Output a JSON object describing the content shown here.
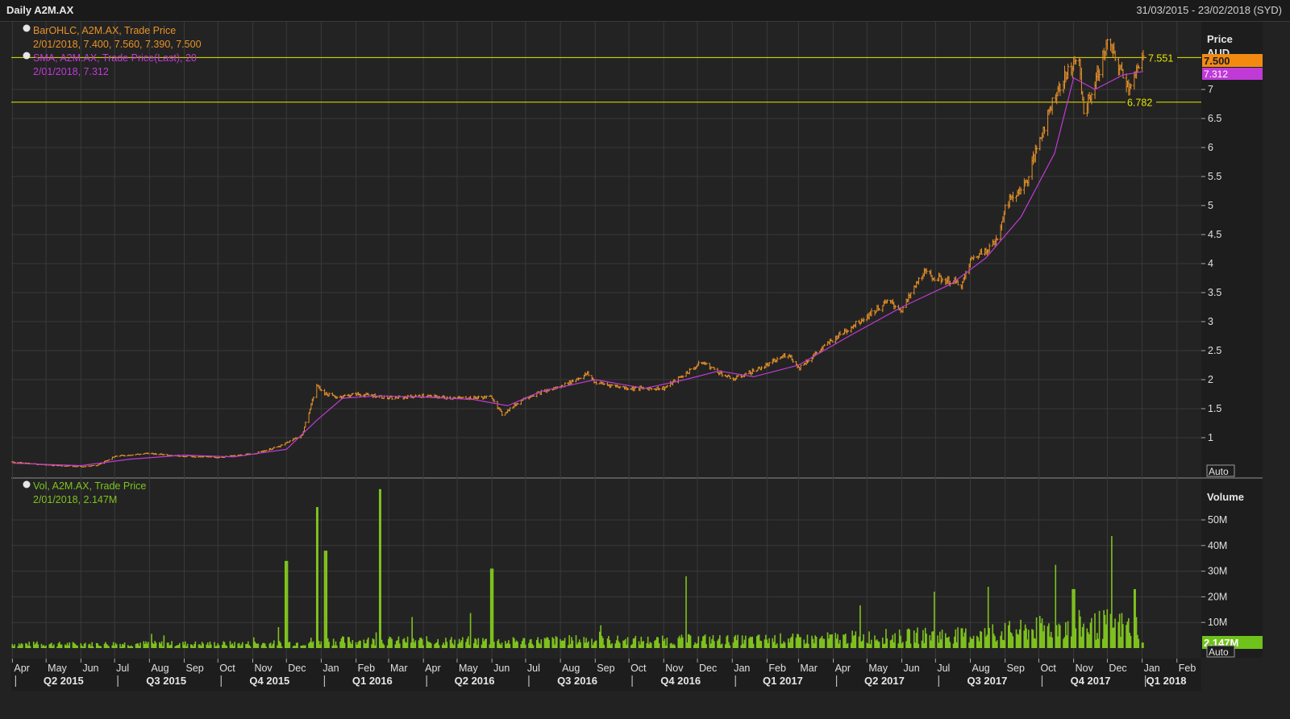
{
  "window": {
    "title": "Daily A2M.AX",
    "date_range": "31/03/2015 - 23/02/2018 (SYD)"
  },
  "colors": {
    "price": "#e8922a",
    "sma": "#c03ad8",
    "volume": "#7fc21f",
    "hline": "#e6e600",
    "grid": "#3a3a3a",
    "bg": "#222222"
  },
  "legend": {
    "ohlc_title": "BarOHLC, A2M.AX, Trade Price",
    "ohlc_values": "2/01/2018, 7.400, 7.560, 7.390, 7.500",
    "sma_title": "SMA, A2M.AX, Trade Price(Last), 20",
    "sma_values": "2/01/2018, 7.312",
    "vol_title": "Vol, A2M.AX, Trade Price",
    "vol_values": "2/01/2018, 2.147M"
  },
  "price_axis": {
    "title": "Price",
    "unit": "AUD",
    "auto_label": "Auto",
    "last_price": "7.500",
    "last_sma": "7.312"
  },
  "volume_axis": {
    "title": "Volume",
    "auto_label": "Auto",
    "last_volume": "2.147M"
  },
  "hlines": [
    {
      "value": 7.551,
      "label": "7.551"
    },
    {
      "value": 6.782,
      "label": "6.782"
    }
  ],
  "chart_data": [
    {
      "type": "line",
      "title": "",
      "series": [
        {
          "name": "BarOHLC, A2M.AX, Trade Price",
          "x": [
            "2015-04-01",
            "2015-05-01",
            "2015-06-01",
            "2015-06-15",
            "2015-07-01",
            "2015-08-01",
            "2015-09-01",
            "2015-10-01",
            "2015-11-01",
            "2015-11-25",
            "2015-12-15",
            "2015-12-28",
            "2016-01-05",
            "2016-01-15",
            "2016-02-01",
            "2016-02-20",
            "2016-03-01",
            "2016-04-01",
            "2016-05-01",
            "2016-06-01",
            "2016-06-10",
            "2016-07-01",
            "2016-08-01",
            "2016-08-25",
            "2016-09-01",
            "2016-10-01",
            "2016-11-01",
            "2016-11-20",
            "2016-12-05",
            "2017-01-01",
            "2017-02-01",
            "2017-02-20",
            "2017-03-01",
            "2017-04-01",
            "2017-05-01",
            "2017-05-20",
            "2017-06-01",
            "2017-06-20",
            "2017-07-01",
            "2017-07-25",
            "2017-08-01",
            "2017-08-25",
            "2017-09-01",
            "2017-09-20",
            "2017-10-01",
            "2017-10-15",
            "2017-10-30",
            "2017-11-05",
            "2017-11-10",
            "2017-11-20",
            "2017-12-01",
            "2017-12-10",
            "2017-12-20",
            "2018-01-02"
          ],
          "values": [
            0.58,
            0.53,
            0.5,
            0.52,
            0.68,
            0.73,
            0.68,
            0.66,
            0.72,
            0.85,
            1.05,
            1.9,
            1.75,
            1.7,
            1.75,
            1.72,
            1.68,
            1.72,
            1.68,
            1.7,
            1.4,
            1.7,
            1.88,
            2.1,
            1.95,
            1.85,
            1.85,
            2.1,
            2.3,
            2.0,
            2.25,
            2.45,
            2.2,
            2.7,
            3.1,
            3.35,
            3.2,
            3.85,
            3.75,
            3.65,
            4.05,
            4.4,
            5.0,
            5.4,
            6.1,
            6.9,
            7.4,
            7.6,
            6.6,
            7.1,
            7.8,
            7.45,
            7.05,
            7.5
          ]
        },
        {
          "name": "SMA, A2M.AX, Trade Price(Last), 20",
          "x": [
            "2015-04-01",
            "2015-06-01",
            "2015-07-15",
            "2015-09-01",
            "2015-10-15",
            "2015-12-01",
            "2015-12-28",
            "2016-01-20",
            "2016-02-20",
            "2016-04-01",
            "2016-05-15",
            "2016-06-15",
            "2016-07-15",
            "2016-09-01",
            "2016-10-15",
            "2016-11-20",
            "2016-12-20",
            "2017-01-20",
            "2017-03-01",
            "2017-04-15",
            "2017-06-01",
            "2017-07-15",
            "2017-08-15",
            "2017-09-15",
            "2017-10-15",
            "2017-11-01",
            "2017-11-20",
            "2017-12-15",
            "2018-01-02"
          ],
          "values": [
            0.56,
            0.52,
            0.63,
            0.7,
            0.67,
            0.8,
            1.3,
            1.68,
            1.72,
            1.7,
            1.66,
            1.55,
            1.8,
            2.0,
            1.85,
            2.0,
            2.15,
            2.05,
            2.25,
            2.75,
            3.25,
            3.65,
            4.1,
            4.8,
            5.9,
            7.2,
            7.0,
            7.25,
            7.31
          ]
        }
      ],
      "xlabel": "",
      "ylabel": "Price AUD",
      "ylim": [
        0,
        8
      ],
      "yticks": [
        "1",
        "1.5",
        "2",
        "2.5",
        "3",
        "3.5",
        "4",
        "4.5",
        "5",
        "5.5",
        "6",
        "6.5",
        "7"
      ],
      "grid": true
    },
    {
      "type": "bar",
      "title": "",
      "series": [
        {
          "name": "Vol, A2M.AX, Trade Price",
          "x": [
            "2015-12-01",
            "2015-12-28",
            "2016-01-05",
            "2016-02-22",
            "2016-06-01",
            "2016-11-20",
            "2017-07-01",
            "2017-11-01",
            "2017-12-25",
            "2018-01-02"
          ],
          "values": [
            34,
            55,
            38,
            62,
            31,
            28,
            22,
            23,
            23,
            2.147
          ],
          "unit": "M"
        }
      ],
      "ylabel": "Volume",
      "ylim": [
        0,
        60
      ],
      "yticks": [
        "10M",
        "20M",
        "30M",
        "40M",
        "50M"
      ],
      "grid": true
    }
  ],
  "x_axis": {
    "months": [
      "Apr",
      "May",
      "Jun",
      "Jul",
      "Aug",
      "Sep",
      "Oct",
      "Nov",
      "Dec",
      "Jan",
      "Feb",
      "Mar",
      "Apr",
      "May",
      "Jun",
      "Jul",
      "Aug",
      "Sep",
      "Oct",
      "Nov",
      "Dec",
      "Jan",
      "Feb",
      "Mar",
      "Apr",
      "May",
      "Jun",
      "Jul",
      "Aug",
      "Sep",
      "Oct",
      "Nov",
      "Dec",
      "Jan",
      "Feb"
    ],
    "quarters": [
      "Q2 2015",
      "Q3 2015",
      "Q4 2015",
      "Q1 2016",
      "Q2 2016",
      "Q3 2016",
      "Q4 2016",
      "Q1 2017",
      "Q2 2017",
      "Q3 2017",
      "Q4 2017",
      "Q1 2018"
    ]
  }
}
